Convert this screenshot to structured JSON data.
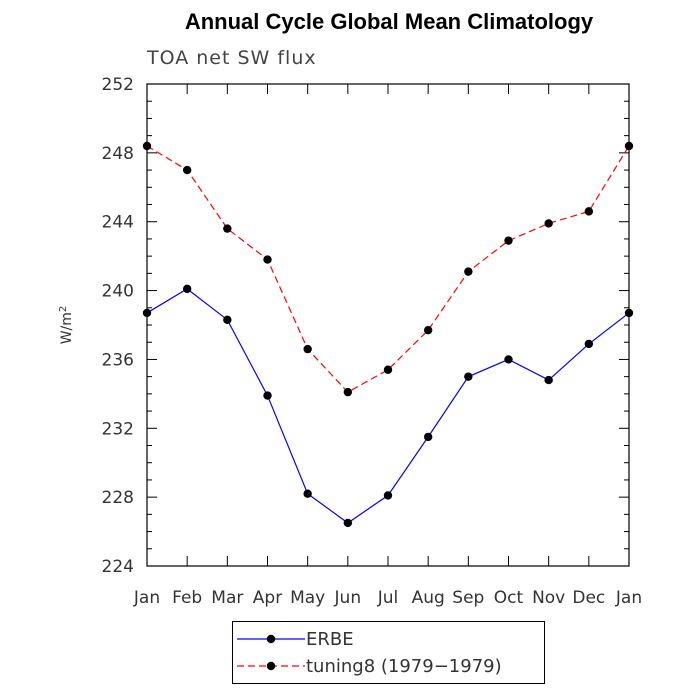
{
  "chart_data": {
    "type": "line",
    "title": "Annual Cycle Global Mean Climatology",
    "subtitle": "TOA net SW flux",
    "ylabel": "W/m",
    "ylabel_sup": "2",
    "categories": [
      "Jan",
      "Feb",
      "Mar",
      "Apr",
      "May",
      "Jun",
      "Jul",
      "Aug",
      "Sep",
      "Oct",
      "Nov",
      "Dec",
      "Jan"
    ],
    "ylim": [
      224,
      252
    ],
    "yticks": [
      224,
      228,
      232,
      236,
      240,
      244,
      248,
      252
    ],
    "series": [
      {
        "name": "ERBE",
        "color": "#0000ff",
        "dash": "solid",
        "values": [
          238.7,
          240.1,
          238.3,
          233.9,
          228.2,
          226.5,
          228.1,
          231.5,
          235.0,
          236.0,
          234.8,
          236.9,
          238.7
        ]
      },
      {
        "name": "tuning8 (1979−1979)",
        "color": "#ff0000",
        "dash": "dashed",
        "values": [
          248.4,
          247.0,
          243.6,
          241.8,
          236.6,
          234.1,
          235.4,
          237.7,
          241.1,
          242.9,
          243.9,
          244.6,
          248.4
        ]
      }
    ],
    "grid": false,
    "legend_position": "bottom-center"
  }
}
